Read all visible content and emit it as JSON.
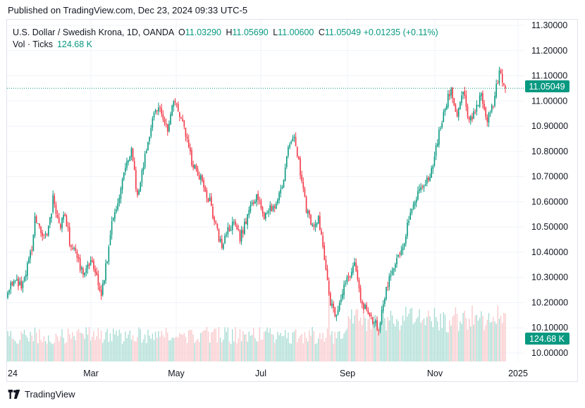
{
  "published": "Published on TradingView.com, Dec 23, 2024 09:33 UTC-5",
  "legend": {
    "symbol": "U.S. Dollar / Swedish Krona, 1D, OANDA",
    "o_label": "O",
    "o_value": "11.03290",
    "h_label": "H",
    "h_value": "11.05690",
    "l_label": "L",
    "l_value": "11.00600",
    "c_label": "C",
    "c_value": "11.05049",
    "change": "+0.01235 (+0.11%)"
  },
  "volume_legend": {
    "label": "Vol · Ticks",
    "value": "124.68 K"
  },
  "price_badge": "11.05049",
  "volume_badge": "124.68 K",
  "footer": {
    "brand": "TradingView"
  },
  "colors": {
    "up": "#089981",
    "down": "#f23645",
    "up_vol": "#a9dcd3",
    "down_vol": "#f9c9cc",
    "grid": "#f0f3fa",
    "axis_text": "#131722"
  },
  "chart_data": {
    "type": "candlestick",
    "symbol": "USDSEK",
    "interval": "1D",
    "x_labels": [
      "24",
      "Mar",
      "May",
      "Jul",
      "Sep",
      "Nov",
      "2025"
    ],
    "y_ticks": [
      10.0,
      10.1,
      10.2,
      10.3,
      10.4,
      10.5,
      10.6,
      10.7,
      10.8,
      10.9,
      11.0,
      11.1,
      11.2,
      11.3
    ],
    "ylim": [
      9.93,
      11.33
    ],
    "last_price": 11.05049,
    "grid": true,
    "close_waypoints": [
      [
        0,
        10.24
      ],
      [
        3,
        10.28
      ],
      [
        10,
        10.27
      ],
      [
        16,
        10.42
      ],
      [
        18,
        10.53
      ],
      [
        22,
        10.48
      ],
      [
        26,
        10.45
      ],
      [
        30,
        10.61
      ],
      [
        34,
        10.5
      ],
      [
        38,
        10.55
      ],
      [
        42,
        10.41
      ],
      [
        46,
        10.39
      ],
      [
        50,
        10.3
      ],
      [
        54,
        10.36
      ],
      [
        58,
        10.33
      ],
      [
        62,
        10.22
      ],
      [
        66,
        10.38
      ],
      [
        70,
        10.55
      ],
      [
        74,
        10.62
      ],
      [
        78,
        10.73
      ],
      [
        82,
        10.8
      ],
      [
        86,
        10.62
      ],
      [
        90,
        10.75
      ],
      [
        94,
        10.87
      ],
      [
        98,
        10.97
      ],
      [
        102,
        10.96
      ],
      [
        106,
        10.88
      ],
      [
        110,
        11.0
      ],
      [
        114,
        10.94
      ],
      [
        118,
        10.87
      ],
      [
        122,
        10.76
      ],
      [
        126,
        10.72
      ],
      [
        130,
        10.66
      ],
      [
        134,
        10.6
      ],
      [
        138,
        10.5
      ],
      [
        142,
        10.42
      ],
      [
        146,
        10.49
      ],
      [
        150,
        10.52
      ],
      [
        154,
        10.46
      ],
      [
        158,
        10.52
      ],
      [
        162,
        10.6
      ],
      [
        166,
        10.62
      ],
      [
        170,
        10.53
      ],
      [
        174,
        10.57
      ],
      [
        178,
        10.6
      ],
      [
        182,
        10.66
      ],
      [
        186,
        10.8
      ],
      [
        190,
        10.86
      ],
      [
        194,
        10.72
      ],
      [
        198,
        10.57
      ],
      [
        202,
        10.51
      ],
      [
        206,
        10.54
      ],
      [
        210,
        10.38
      ],
      [
        214,
        10.2
      ],
      [
        218,
        10.15
      ],
      [
        222,
        10.25
      ],
      [
        226,
        10.3
      ],
      [
        230,
        10.36
      ],
      [
        234,
        10.22
      ],
      [
        238,
        10.16
      ],
      [
        242,
        10.13
      ],
      [
        246,
        10.1
      ],
      [
        250,
        10.23
      ],
      [
        254,
        10.32
      ],
      [
        258,
        10.37
      ],
      [
        262,
        10.42
      ],
      [
        266,
        10.54
      ],
      [
        270,
        10.59
      ],
      [
        274,
        10.66
      ],
      [
        278,
        10.69
      ],
      [
        282,
        10.74
      ],
      [
        286,
        10.88
      ],
      [
        290,
        10.98
      ],
      [
        294,
        11.05
      ],
      [
        298,
        10.94
      ],
      [
        302,
        11.04
      ],
      [
        306,
        10.92
      ],
      [
        310,
        10.96
      ],
      [
        314,
        11.02
      ],
      [
        318,
        10.93
      ],
      [
        322,
        10.98
      ],
      [
        326,
        11.12
      ],
      [
        330,
        11.05
      ]
    ],
    "volume_range_k": [
      20,
      210
    ],
    "volume_last_k": 124.68
  }
}
